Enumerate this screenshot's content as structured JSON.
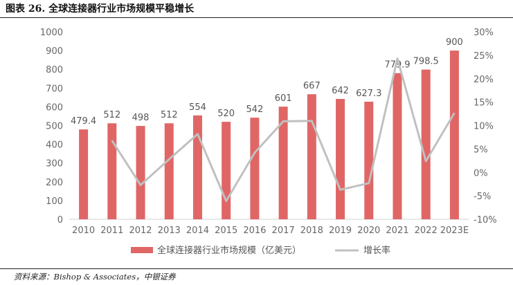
{
  "header": {
    "title": "图表 26.  全球连接器行业市场规模平稳增长"
  },
  "footer": {
    "source": "资料来源：Bishop & Associates，中银证券"
  },
  "colors": {
    "bar": "#e06666",
    "line": "#c0c0c0",
    "axis_text": "#666666"
  },
  "chart_data": {
    "type": "bar",
    "title": "",
    "categories": [
      "2010",
      "2011",
      "2012",
      "2013",
      "2014",
      "2015",
      "2016",
      "2017",
      "2018",
      "2019",
      "2020",
      "2021",
      "2022",
      "2023E"
    ],
    "series": [
      {
        "name": "全球连接器行业市场规模（亿美元）",
        "type": "bar",
        "axis": "left",
        "values": [
          479.4,
          512,
          498,
          512,
          554,
          520,
          542,
          601,
          667,
          642,
          627.3,
          779.9,
          798.5,
          900
        ],
        "labels": [
          "479.4",
          "512",
          "498",
          "512",
          "554",
          "520",
          "542",
          "601",
          "667",
          "642",
          "627.3",
          "779.9",
          "798.5",
          "900"
        ]
      },
      {
        "name": "增长率",
        "type": "line",
        "axis": "right",
        "values": [
          null,
          6.8,
          -2.7,
          2.8,
          8.2,
          -6.1,
          4.2,
          10.9,
          11.0,
          -3.7,
          -2.3,
          24.3,
          2.4,
          12.7
        ]
      }
    ],
    "y_left": {
      "min": 0,
      "max": 1000,
      "ticks": [
        "0",
        "100",
        "200",
        "300",
        "400",
        "500",
        "600",
        "700",
        "800",
        "900",
        "1000"
      ]
    },
    "y_right": {
      "min": -10,
      "max": 30,
      "ticks": [
        "-10%",
        "-5%",
        "0%",
        "5%",
        "10%",
        "15%",
        "20%",
        "25%",
        "30%"
      ]
    },
    "grid": false,
    "legend_position": "bottom"
  }
}
